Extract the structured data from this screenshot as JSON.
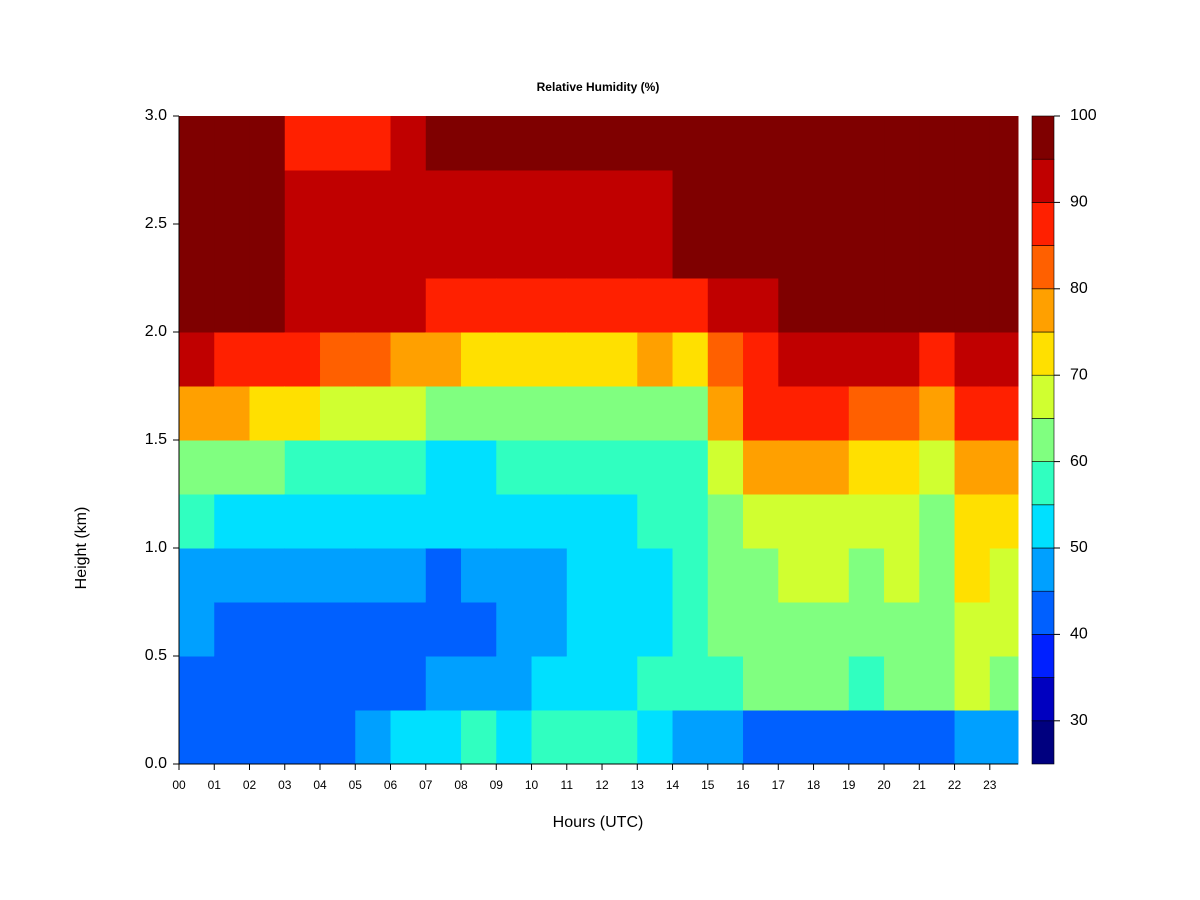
{
  "chart_data": {
    "type": "filled-contour",
    "title": "Relative Humidity (%)",
    "x_label": "Hours (UTC)",
    "y_label": "Height (km)",
    "x": [
      0,
      1,
      2,
      3,
      4,
      5,
      6,
      7,
      8,
      9,
      10,
      11,
      12,
      13,
      14,
      15,
      16,
      17,
      18,
      19,
      20,
      21,
      22,
      23
    ],
    "y": [
      0.125,
      0.375,
      0.625,
      0.875,
      1.125,
      1.375,
      1.625,
      1.875,
      2.125,
      2.375,
      2.625,
      2.875
    ],
    "z": [
      [
        40,
        40,
        45,
        47,
        55,
        62,
        78,
        90,
        97,
        97,
        97,
        97
      ],
      [
        40,
        42,
        44,
        47,
        52,
        60,
        75,
        88,
        96,
        97,
        97,
        97
      ],
      [
        42,
        43,
        44,
        47,
        52,
        60,
        72,
        87,
        95,
        97,
        97,
        97
      ],
      [
        42,
        44,
        44,
        46,
        50,
        58,
        70,
        85,
        92,
        92,
        90,
        88
      ],
      [
        44,
        43,
        43,
        45,
        50,
        57,
        68,
        82,
        92,
        92,
        90,
        85
      ],
      [
        45,
        42,
        43,
        45,
        50,
        56,
        67,
        80,
        90,
        92,
        90,
        88
      ],
      [
        50,
        44,
        43,
        45,
        50,
        55,
        65,
        78,
        90,
        92,
        92,
        93
      ],
      [
        52,
        45,
        43,
        44,
        50,
        54,
        62,
        75,
        88,
        92,
        93,
        95
      ],
      [
        55,
        47,
        44,
        45,
        50,
        54,
        60,
        72,
        86,
        92,
        94,
        97
      ],
      [
        54,
        48,
        45,
        46,
        51,
        55,
        60,
        72,
        86,
        92,
        94,
        97
      ],
      [
        55,
        50,
        47,
        48,
        52,
        55,
        60,
        72,
        86,
        91,
        93,
        97
      ],
      [
        57,
        52,
        50,
        50,
        52,
        56,
        62,
        74,
        86,
        90,
        92,
        95
      ],
      [
        55,
        53,
        52,
        52,
        54,
        57,
        63,
        74,
        85,
        90,
        92,
        95
      ],
      [
        53,
        55,
        54,
        54,
        55,
        57,
        63,
        75,
        86,
        91,
        93,
        95
      ],
      [
        48,
        55,
        55,
        55,
        56,
        58,
        62,
        72,
        88,
        95,
        97,
        97
      ],
      [
        45,
        58,
        60,
        60,
        62,
        68,
        75,
        80,
        90,
        97,
        97,
        97
      ],
      [
        43,
        60,
        62,
        63,
        65,
        75,
        85,
        88,
        93,
        97,
        97,
        97
      ],
      [
        42,
        62,
        63,
        65,
        68,
        78,
        88,
        90,
        95,
        97,
        97,
        97
      ],
      [
        40,
        60,
        62,
        65,
        68,
        75,
        85,
        90,
        97,
        97,
        97,
        97
      ],
      [
        42,
        58,
        62,
        64,
        66,
        72,
        82,
        90,
        97,
        97,
        97,
        97
      ],
      [
        42,
        60,
        62,
        65,
        68,
        73,
        82,
        90,
        97,
        97,
        97,
        97
      ],
      [
        42,
        60,
        60,
        62,
        64,
        68,
        75,
        88,
        97,
        97,
        97,
        97
      ],
      [
        45,
        65,
        68,
        70,
        72,
        78,
        88,
        92,
        97,
        97,
        97,
        97
      ],
      [
        48,
        62,
        65,
        68,
        72,
        78,
        88,
        93,
        97,
        97,
        97,
        97
      ]
    ],
    "xlim": [
      0,
      23.8
    ],
    "ylim": [
      0,
      3
    ],
    "xticks": [
      {
        "value": 0,
        "label": "00"
      },
      {
        "value": 1,
        "label": "01"
      },
      {
        "value": 2,
        "label": "02"
      },
      {
        "value": 3,
        "label": "03"
      },
      {
        "value": 4,
        "label": "04"
      },
      {
        "value": 5,
        "label": "05"
      },
      {
        "value": 6,
        "label": "06"
      },
      {
        "value": 7,
        "label": "07"
      },
      {
        "value": 8,
        "label": "08"
      },
      {
        "value": 9,
        "label": "09"
      },
      10,
      11,
      12,
      13,
      14,
      15,
      16,
      17,
      18,
      19,
      20,
      21,
      22,
      23
    ],
    "yticks": [
      {
        "value": 0,
        "label": "0.0"
      },
      {
        "value": 0.5,
        "label": "0.5"
      },
      {
        "value": 1,
        "label": "1.0"
      },
      {
        "value": 1.5,
        "label": "1.5"
      },
      {
        "value": 2,
        "label": "2.0"
      },
      {
        "value": 2.5,
        "label": "2.5"
      },
      {
        "value": 3,
        "label": "3.0"
      }
    ],
    "zlim": [
      25,
      100
    ],
    "zticks": [
      30,
      40,
      50,
      60,
      70,
      80,
      90,
      100
    ],
    "colors": [
      "#00007f",
      "#0000c0",
      "#0020ff",
      "#0060ff",
      "#00a0ff",
      "#00e0ff",
      "#30ffc0",
      "#80ff80",
      "#d0ff30",
      "#ffe000",
      "#ffa000",
      "#ff6000",
      "#ff2000",
      "#c00000",
      "#7f0000"
    ]
  }
}
